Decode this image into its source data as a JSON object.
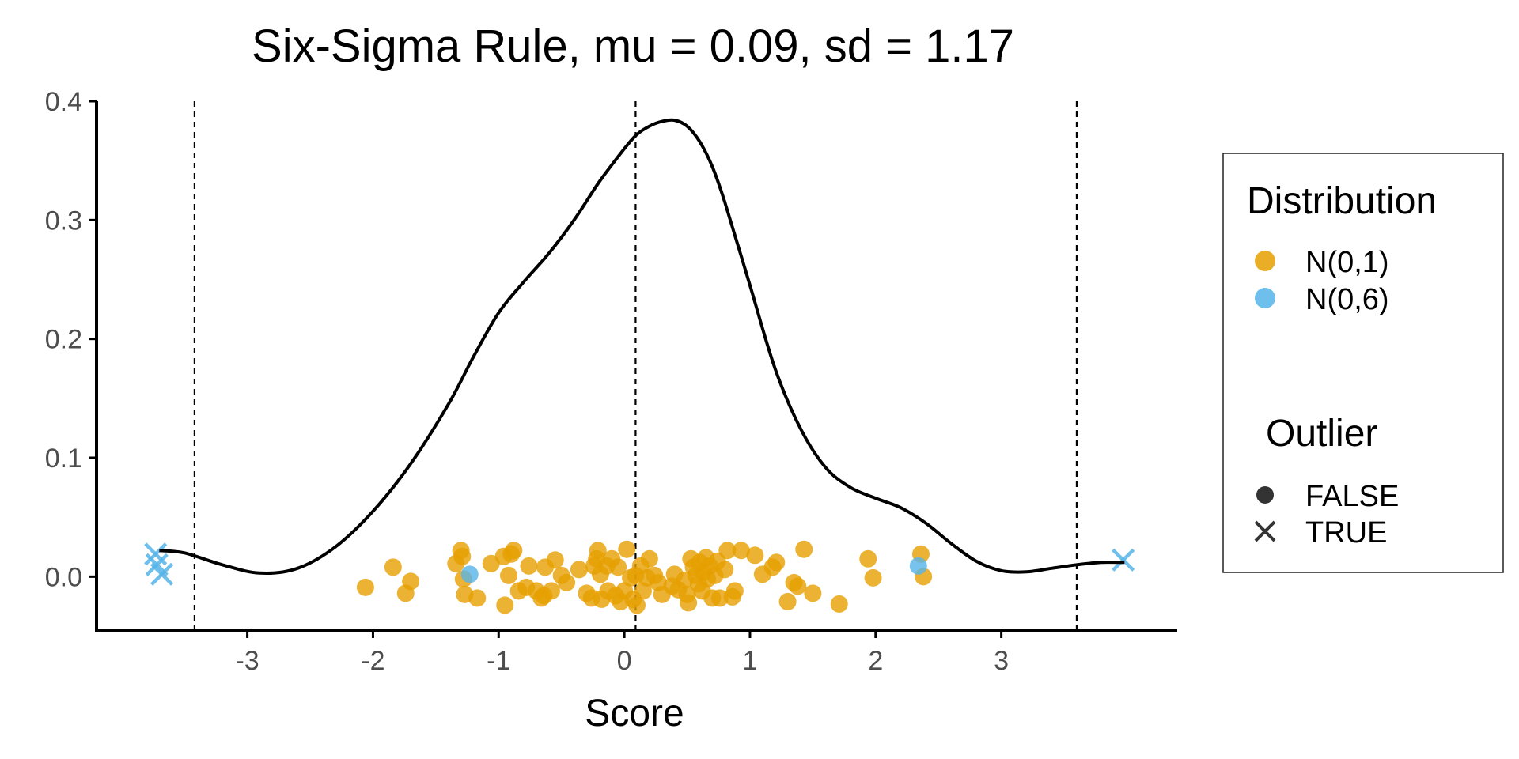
{
  "chart_data": {
    "type": "scatter",
    "title": "Six-Sigma Rule, mu = 0.09, sd = 1.17",
    "xlabel": "Score",
    "ylabel": "",
    "xlim": [
      -4.2,
      4.4
    ],
    "ylim": [
      -0.045,
      0.4
    ],
    "x_ticks": [
      -3,
      -2,
      -1,
      0,
      1,
      2,
      3
    ],
    "x_tick_labels": [
      "-3",
      "-2",
      "-1",
      "0",
      "1",
      "2",
      "3"
    ],
    "y_ticks": [
      0.0,
      0.1,
      0.2,
      0.3,
      0.4
    ],
    "y_tick_labels": [
      "0.0",
      "0.1",
      "0.2",
      "0.3",
      "0.4"
    ],
    "grid": false,
    "reference_lines": [
      -3.42,
      0.09,
      3.6
    ],
    "density_curve": {
      "x": [
        -3.7,
        -3.5,
        -3.2,
        -2.9,
        -2.6,
        -2.3,
        -2.0,
        -1.7,
        -1.4,
        -1.2,
        -1.0,
        -0.8,
        -0.6,
        -0.4,
        -0.2,
        0.0,
        0.1,
        0.2,
        0.3,
        0.4,
        0.5,
        0.6,
        0.7,
        0.8,
        1.0,
        1.2,
        1.4,
        1.6,
        1.8,
        2.0,
        2.2,
        2.4,
        2.6,
        2.8,
        3.0,
        3.2,
        3.4,
        3.6,
        3.8,
        3.98
      ],
      "y": [
        0.022,
        0.02,
        0.01,
        0.003,
        0.007,
        0.025,
        0.055,
        0.095,
        0.145,
        0.185,
        0.222,
        0.248,
        0.272,
        0.3,
        0.332,
        0.36,
        0.372,
        0.379,
        0.383,
        0.384,
        0.379,
        0.366,
        0.345,
        0.315,
        0.245,
        0.175,
        0.125,
        0.092,
        0.075,
        0.066,
        0.058,
        0.045,
        0.028,
        0.013,
        0.005,
        0.004,
        0.007,
        0.01,
        0.012,
        0.012
      ]
    },
    "series": [
      {
        "name": "N(0,1)",
        "color": "#E69F00",
        "points": [
          [
            -2.06,
            -0.009
          ],
          [
            -1.84,
            0.008
          ],
          [
            -1.74,
            -0.014
          ],
          [
            -1.7,
            -0.004
          ],
          [
            -1.34,
            0.011
          ],
          [
            -1.3,
            0.022
          ],
          [
            -1.29,
            0.017
          ],
          [
            -1.28,
            -0.002
          ],
          [
            -1.27,
            -0.015
          ],
          [
            -1.17,
            -0.018
          ],
          [
            -1.06,
            0.011
          ],
          [
            -0.96,
            0.017
          ],
          [
            -0.95,
            -0.024
          ],
          [
            -0.92,
            0.001
          ],
          [
            -0.9,
            0.019
          ],
          [
            -0.88,
            0.022
          ],
          [
            -0.84,
            -0.012
          ],
          [
            -0.78,
            -0.009
          ],
          [
            -0.76,
            0.009
          ],
          [
            -0.7,
            -0.012
          ],
          [
            -0.66,
            -0.018
          ],
          [
            -0.64,
            -0.016
          ],
          [
            -0.63,
            0.008
          ],
          [
            -0.58,
            -0.012
          ],
          [
            -0.55,
            0.014
          ],
          [
            -0.5,
            0.001
          ],
          [
            -0.46,
            -0.005
          ],
          [
            -0.36,
            0.006
          ],
          [
            -0.3,
            -0.014
          ],
          [
            -0.26,
            -0.018
          ],
          [
            -0.24,
            0.009
          ],
          [
            -0.22,
            0.015
          ],
          [
            -0.21,
            0.022
          ],
          [
            -0.19,
            0.002
          ],
          [
            -0.18,
            -0.019
          ],
          [
            -0.14,
            0.009
          ],
          [
            -0.13,
            -0.012
          ],
          [
            -0.1,
            0.015
          ],
          [
            -0.07,
            -0.016
          ],
          [
            -0.05,
            0.008
          ],
          [
            -0.03,
            -0.021
          ],
          [
            0.0,
            -0.012
          ],
          [
            0.02,
            0.023
          ],
          [
            0.05,
            -0.001
          ],
          [
            0.07,
            -0.019
          ],
          [
            0.09,
            0.001
          ],
          [
            0.1,
            -0.024
          ],
          [
            0.13,
            0.009
          ],
          [
            0.15,
            -0.012
          ],
          [
            0.18,
            -0.001
          ],
          [
            0.2,
            0.015
          ],
          [
            0.24,
            0.001
          ],
          [
            0.27,
            -0.005
          ],
          [
            0.3,
            -0.015
          ],
          [
            0.38,
            -0.008
          ],
          [
            0.4,
            0.002
          ],
          [
            0.43,
            -0.011
          ],
          [
            0.48,
            -0.003
          ],
          [
            0.5,
            -0.015
          ],
          [
            0.51,
            -0.022
          ],
          [
            0.53,
            0.015
          ],
          [
            0.55,
            0.008
          ],
          [
            0.57,
            0.001
          ],
          [
            0.59,
            -0.006
          ],
          [
            0.6,
            0.012
          ],
          [
            0.62,
            -0.012
          ],
          [
            0.63,
            0.004
          ],
          [
            0.65,
            0.016
          ],
          [
            0.66,
            -0.002
          ],
          [
            0.68,
            0.009
          ],
          [
            0.7,
            -0.018
          ],
          [
            0.72,
            0.001
          ],
          [
            0.74,
            0.013
          ],
          [
            0.76,
            -0.018
          ],
          [
            0.8,
            0.006
          ],
          [
            0.82,
            0.022
          ],
          [
            0.86,
            -0.017
          ],
          [
            0.88,
            -0.012
          ],
          [
            0.93,
            0.022
          ],
          [
            1.04,
            0.018
          ],
          [
            1.1,
            0.002
          ],
          [
            1.18,
            0.008
          ],
          [
            1.21,
            0.012
          ],
          [
            1.3,
            -0.021
          ],
          [
            1.35,
            -0.005
          ],
          [
            1.38,
            -0.008
          ],
          [
            1.43,
            0.023
          ],
          [
            1.5,
            -0.014
          ],
          [
            1.71,
            -0.023
          ],
          [
            1.94,
            0.015
          ],
          [
            1.98,
            -0.001
          ],
          [
            2.36,
            0.019
          ],
          [
            2.38,
            0.0
          ]
        ]
      },
      {
        "name": "N(0,6)",
        "color": "#56B4E9",
        "points": [
          [
            -1.23,
            0.002
          ],
          [
            2.34,
            0.009
          ]
        ]
      }
    ],
    "outliers": {
      "color": "#56B4E9",
      "points": [
        [
          -3.73,
          0.019
        ],
        [
          -3.72,
          0.01
        ],
        [
          -3.68,
          0.002
        ],
        [
          3.97,
          0.014
        ]
      ]
    },
    "legend": {
      "placement": "right",
      "color_title": "Distribution",
      "color_entries": [
        {
          "label": "N(0,1)",
          "color": "#E69F00"
        },
        {
          "label": "N(0,6)",
          "color": "#56B4E9"
        }
      ],
      "shape_title": "Outlier",
      "shape_entries": [
        {
          "label": "FALSE",
          "shape": "circle"
        },
        {
          "label": "TRUE",
          "shape": "cross"
        }
      ]
    }
  }
}
